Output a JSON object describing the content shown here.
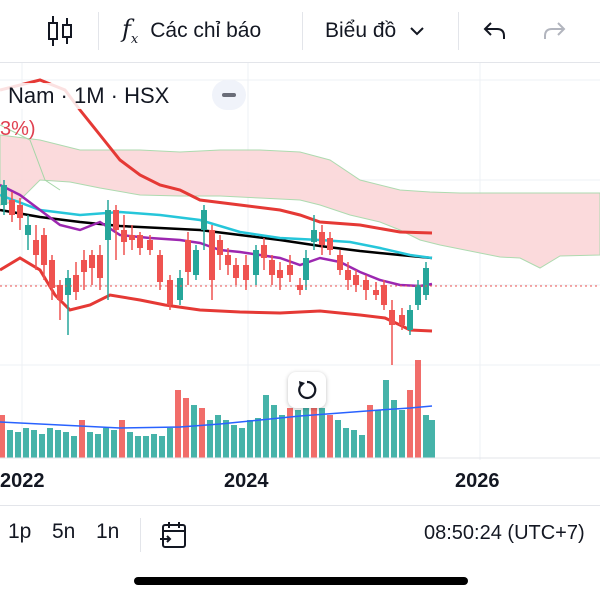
{
  "toolbar": {
    "candles_icon": "candlestick-icon",
    "indicators_label": "Các chỉ báo",
    "chart_type_label": "Biểu đồ",
    "undo_icon": "undo-icon",
    "redo_icon": "redo-icon"
  },
  "symbol": {
    "text": "Nam · 1M · HSX",
    "partial_pct": "3%)"
  },
  "x_axis": {
    "labels": [
      "2022",
      "2024",
      "2026"
    ]
  },
  "range_buttons": [
    "1p",
    "5n",
    "1n"
  ],
  "footer": {
    "time": "08:50:24 (UTC+7)"
  },
  "colors": {
    "up": "#26a69a",
    "down": "#ef5350",
    "band": "#e53935",
    "cloud": "#fbd7d9",
    "cyan_ma": "#26c6da",
    "purple_ma": "#9c27b0",
    "black_ma": "#000000",
    "volume_ma": "#2962ff"
  }
}
